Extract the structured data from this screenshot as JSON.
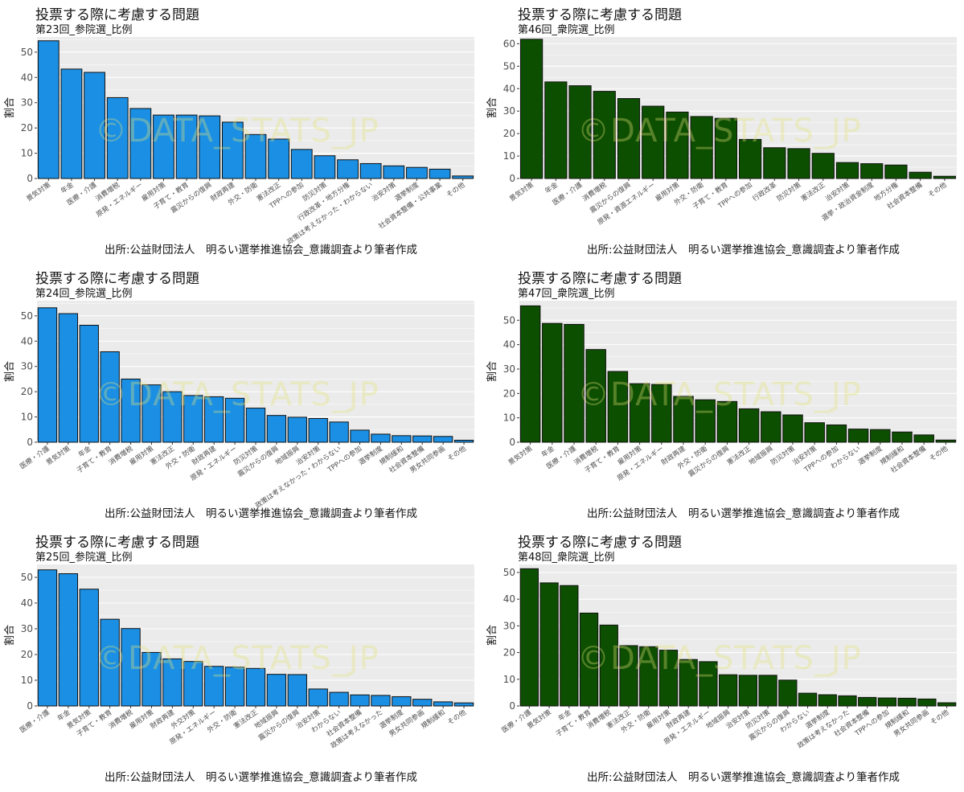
{
  "colors": {
    "blue": "#1a8fe3",
    "green": "#0d4f00",
    "panel_bg": "#ebebeb",
    "grid": "#ffffff",
    "bar_border": "#111111"
  },
  "watermark": "©DATA_STATS_JP",
  "chart_data": [
    {
      "type": "bar",
      "title": "投票する際に考慮する問題",
      "subtitle": "第23回_参院選_比例",
      "caption": "出所:公益財団法人　明るい選挙推進協会_意識調査より筆者作成",
      "ylabel": "割合",
      "color": "#1a8fe3",
      "ylim": [
        0,
        56
      ],
      "yticks": [
        0,
        10,
        20,
        30,
        40,
        50
      ],
      "grid": true,
      "categories": [
        "景気対策",
        "年金",
        "医療・介護",
        "消費増税",
        "原発・エネルギー",
        "雇用対策",
        "子育て・教育",
        "震災からの復興",
        "財政再建",
        "外交・防衛",
        "憲法改正",
        "TPPへの参加",
        "防災対策",
        "行政改革・地方分権",
        "政策は考えなかった・わからない",
        "治安対策",
        "選挙制度",
        "社会資本整備・公共事業",
        "その他"
      ],
      "values": [
        54.5,
        43.3,
        42.0,
        32.0,
        27.7,
        25.1,
        25.1,
        24.8,
        22.3,
        17.4,
        15.6,
        11.5,
        9.0,
        7.4,
        5.9,
        5.0,
        4.4,
        3.7,
        1.0
      ]
    },
    {
      "type": "bar",
      "title": "投票する際に考慮する問題",
      "subtitle": "第46回_衆院選_比例",
      "caption": "出所:公益財団法人　明るい選挙推進協会_意識調査より筆者作成",
      "ylabel": "割合",
      "color": "#0d4f00",
      "ylim": [
        0,
        63
      ],
      "yticks": [
        0,
        10,
        20,
        30,
        40,
        50,
        60
      ],
      "grid": true,
      "categories": [
        "景気対策",
        "年金",
        "医療・介護",
        "消費増税",
        "震災からの復興",
        "原発・資源エネルギー",
        "雇用対策",
        "外交・防衛",
        "子育て・教育",
        "TPPへの参加",
        "行政改革",
        "防災対策",
        "憲法改正",
        "治安対策",
        "選挙・政治資金制度",
        "地方分権",
        "社会資本整備",
        "その他"
      ],
      "values": [
        62.0,
        43.0,
        41.3,
        38.8,
        35.6,
        32.2,
        29.6,
        27.6,
        26.8,
        17.4,
        13.7,
        13.3,
        11.2,
        7.1,
        6.6,
        6.0,
        2.8,
        1.0
      ]
    },
    {
      "type": "bar",
      "title": "投票する際に考慮する問題",
      "subtitle": "第24回_参院選_比例",
      "caption": "出所:公益財団法人　明るい選挙推進協会_意識調査より筆者作成",
      "ylabel": "割合",
      "color": "#1a8fe3",
      "ylim": [
        0,
        56
      ],
      "yticks": [
        0,
        10,
        20,
        30,
        40,
        50
      ],
      "grid": true,
      "categories": [
        "医療・介護",
        "景気対策",
        "年金",
        "子育て・教育",
        "消費増税",
        "雇用対策",
        "憲法改正",
        "外交・防衛",
        "財政再建",
        "原発・エネルギー",
        "防災対策",
        "震災からの復興",
        "地域振興",
        "治安対策",
        "政策は考えなかった・わからない",
        "TPPへの参加",
        "選挙制度",
        "規制緩和",
        "社会資本整備",
        "男女共同参画",
        "その他"
      ],
      "values": [
        53.2,
        50.9,
        46.3,
        35.8,
        25.0,
        22.7,
        20.0,
        18.5,
        18.0,
        17.4,
        13.5,
        10.6,
        9.9,
        9.4,
        8.0,
        4.8,
        3.2,
        2.6,
        2.5,
        2.3,
        0.8
      ]
    },
    {
      "type": "bar",
      "title": "投票する際に考慮する問題",
      "subtitle": "第47回_衆院選_比例",
      "caption": "出所:公益財団法人　明るい選挙推進協会_意識調査より筆者作成",
      "ylabel": "割合",
      "color": "#0d4f00",
      "ylim": [
        0,
        58
      ],
      "yticks": [
        0,
        10,
        20,
        30,
        40,
        50
      ],
      "grid": true,
      "categories": [
        "景気対策",
        "年金",
        "医療・介護",
        "消費増税",
        "子育て・教育",
        "雇用対策",
        "原発・エネルギー",
        "財政再建",
        "外交・防衛",
        "震災からの復興",
        "憲法改正",
        "地域振興",
        "防災対策",
        "治安対策",
        "TPPへの参加",
        "わからない",
        "選挙制度",
        "規制緩和",
        "社会資本整備",
        "その他"
      ],
      "values": [
        55.9,
        48.7,
        48.3,
        38.0,
        29.0,
        24.0,
        23.7,
        18.8,
        17.4,
        16.7,
        13.7,
        12.5,
        11.2,
        8.0,
        7.1,
        5.4,
        5.2,
        4.2,
        3.0,
        0.9
      ]
    },
    {
      "type": "bar",
      "title": "投票する際に考慮する問題",
      "subtitle": "第25回_参院選_比例",
      "caption": "出所:公益財団法人　明るい選挙推進協会_意識調査より筆者作成",
      "ylabel": "割合",
      "color": "#1a8fe3",
      "ylim": [
        0,
        55
      ],
      "yticks": [
        0,
        10,
        20,
        30,
        40,
        50
      ],
      "grid": true,
      "categories": [
        "医療・介護",
        "年金",
        "景気対策",
        "子育て・教育",
        "消費増税",
        "雇用対策",
        "財政再建",
        "外交対策",
        "原発・エネルギー",
        "外交・防衛",
        "憲法改正",
        "地域振興",
        "震災からの復興",
        "治安対策",
        "わからない",
        "社会資本整備",
        "政策は考えなかった",
        "選挙制度",
        "男女共同参画",
        "規制緩和",
        "その他"
      ],
      "values": [
        52.9,
        51.4,
        45.4,
        33.7,
        30.1,
        20.8,
        18.3,
        17.3,
        15.4,
        15.1,
        14.6,
        12.3,
        12.2,
        6.6,
        5.3,
        4.3,
        4.1,
        3.6,
        2.6,
        1.6,
        1.2
      ]
    },
    {
      "type": "bar",
      "title": "投票する際に考慮する問題",
      "subtitle": "第48回_衆院選_比例",
      "caption": "出所:公益財団法人　明るい選挙推進協会_意識調査より筆者作成",
      "ylabel": "割合",
      "color": "#0d4f00",
      "ylim": [
        0,
        53
      ],
      "yticks": [
        0,
        10,
        20,
        30,
        40,
        50
      ],
      "grid": true,
      "categories": [
        "医療・介護",
        "景気対策",
        "年金",
        "子育て・教育",
        "消費増税",
        "憲法改正",
        "外交・防衛",
        "雇用対策",
        "財政再建",
        "原発・エネルギー",
        "地域振興",
        "治安対策",
        "防災対策",
        "震災からの復興",
        "わからない",
        "選挙制度",
        "政策は考えなかった",
        "社会資本整備",
        "TPPへの参加",
        "規制緩和",
        "男女共同参画",
        "その他"
      ],
      "values": [
        51.4,
        46.1,
        45.1,
        34.8,
        30.3,
        22.6,
        22.2,
        20.9,
        17.4,
        16.6,
        11.7,
        11.5,
        11.5,
        9.7,
        4.8,
        4.2,
        3.8,
        3.2,
        3.0,
        2.9,
        2.6,
        1.2
      ]
    }
  ]
}
